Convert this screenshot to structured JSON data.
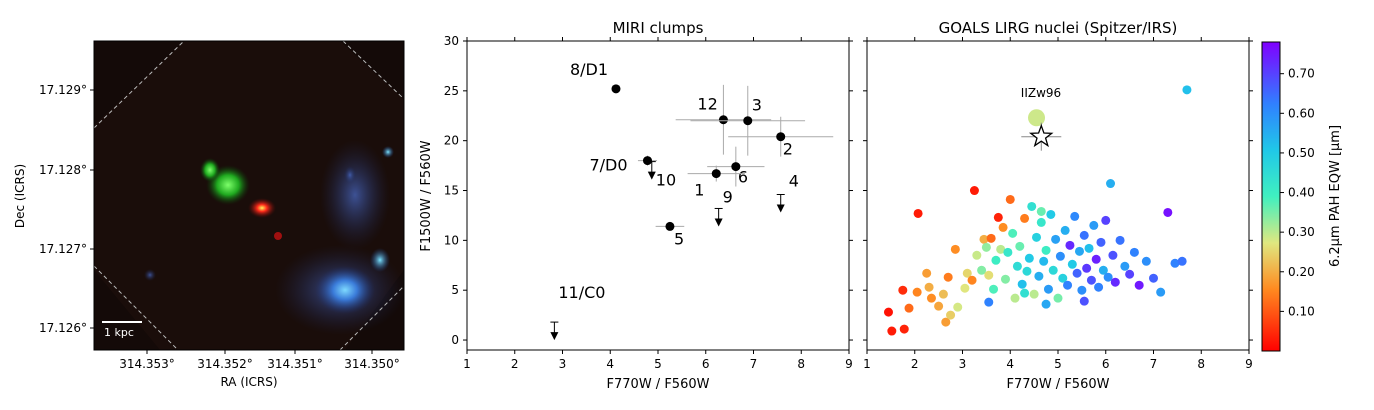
{
  "image_panel": {
    "ylabel": "Dec (ICRS)",
    "xlabel": "RA (ICRS)",
    "yticks": [
      "17.129°",
      "17.128°",
      "17.127°",
      "17.126°"
    ],
    "xticks": [
      "314.353°",
      "314.352°",
      "314.351°",
      "314.350°"
    ],
    "scalebar_label": "1 kpc"
  },
  "chart_data": [
    {
      "type": "scatter",
      "title": "MIRI clumps",
      "xlabel": "F770W / F560W",
      "ylabel": "F1500W / F560W",
      "xlim": [
        1,
        9
      ],
      "ylim": [
        -1,
        30
      ],
      "xticks": [
        1,
        2,
        3,
        4,
        5,
        6,
        7,
        8,
        9
      ],
      "yticks": [
        0,
        5,
        10,
        15,
        20,
        25,
        30
      ],
      "points": [
        {
          "label": "8/D1",
          "x": 4.12,
          "y": 25.2,
          "xerr": 0,
          "yerr": 0,
          "upper_limit": false
        },
        {
          "label": "12",
          "x": 6.37,
          "y": 22.1,
          "xerr": 1.0,
          "yerr": 3.5,
          "upper_limit": false
        },
        {
          "label": "3",
          "x": 6.88,
          "y": 22.0,
          "xerr": 1.2,
          "yerr": 3.5,
          "upper_limit": false
        },
        {
          "label": "2",
          "x": 7.57,
          "y": 20.4,
          "xerr": 1.1,
          "yerr": 2.0,
          "upper_limit": false
        },
        {
          "label": "7/D0",
          "x": 4.78,
          "y": 18.0,
          "xerr": 0.2,
          "yerr": 0.5,
          "upper_limit": false
        },
        {
          "label": "6",
          "x": 6.63,
          "y": 17.4,
          "xerr": 0.6,
          "yerr": 2.0,
          "upper_limit": false
        },
        {
          "label": "1",
          "x": 6.22,
          "y": 16.7,
          "xerr": 0.6,
          "yerr": 0.8,
          "upper_limit": false
        },
        {
          "label": "5",
          "x": 5.25,
          "y": 11.4,
          "xerr": 0.3,
          "yerr": 0.3,
          "upper_limit": false
        },
        {
          "label": "10",
          "x": 4.87,
          "y": 17.9,
          "upper_limit": true
        },
        {
          "label": "9",
          "x": 6.27,
          "y": 13.2,
          "upper_limit": true
        },
        {
          "label": "4",
          "x": 7.57,
          "y": 14.6,
          "upper_limit": true
        },
        {
          "label": "11/C0",
          "x": 2.83,
          "y": 1.8,
          "upper_limit": true
        }
      ]
    },
    {
      "type": "scatter",
      "title": "GOALS LIRG nuclei (Spitzer/IRS)",
      "xlabel": "F770W / F560W",
      "xlim": [
        1,
        9
      ],
      "ylim": [
        -1,
        30
      ],
      "xticks": [
        1,
        2,
        3,
        4,
        5,
        6,
        7,
        8,
        9
      ],
      "yticks": [
        0,
        5,
        10,
        15,
        20,
        25,
        30
      ],
      "colorbar": {
        "label": "6.2μm PAH EQW [μm]",
        "ticks": [
          "0.10",
          "0.20",
          "0.30",
          "0.40",
          "0.50",
          "0.60",
          "0.70"
        ],
        "range": [
          0.0,
          0.78
        ]
      },
      "annotation": "IIZw96",
      "iizw96": {
        "x": 4.55,
        "y": 22.3,
        "c": 0.3
      },
      "star": {
        "x": 4.65,
        "y": 20.4
      },
      "points": [
        {
          "x": 1.45,
          "y": 2.8,
          "c": 0.02
        },
        {
          "x": 1.52,
          "y": 0.9,
          "c": 0.03
        },
        {
          "x": 1.75,
          "y": 5.0,
          "c": 0.05
        },
        {
          "x": 1.78,
          "y": 1.1,
          "c": 0.04
        },
        {
          "x": 1.88,
          "y": 3.2,
          "c": 0.12
        },
        {
          "x": 2.05,
          "y": 4.8,
          "c": 0.15
        },
        {
          "x": 2.07,
          "y": 12.7,
          "c": 0.03
        },
        {
          "x": 2.25,
          "y": 6.7,
          "c": 0.18
        },
        {
          "x": 2.3,
          "y": 5.3,
          "c": 0.2
        },
        {
          "x": 2.35,
          "y": 4.2,
          "c": 0.16
        },
        {
          "x": 2.5,
          "y": 3.4,
          "c": 0.19
        },
        {
          "x": 2.6,
          "y": 4.6,
          "c": 0.22
        },
        {
          "x": 2.65,
          "y": 1.8,
          "c": 0.18
        },
        {
          "x": 2.7,
          "y": 6.3,
          "c": 0.14
        },
        {
          "x": 2.75,
          "y": 2.5,
          "c": 0.24
        },
        {
          "x": 2.85,
          "y": 9.1,
          "c": 0.16
        },
        {
          "x": 2.9,
          "y": 3.3,
          "c": 0.28
        },
        {
          "x": 3.1,
          "y": 6.7,
          "c": 0.25
        },
        {
          "x": 3.2,
          "y": 6.0,
          "c": 0.15
        },
        {
          "x": 3.25,
          "y": 15.0,
          "c": 0.03
        },
        {
          "x": 3.3,
          "y": 8.5,
          "c": 0.29
        },
        {
          "x": 3.4,
          "y": 7.0,
          "c": 0.34
        },
        {
          "x": 3.45,
          "y": 10.1,
          "c": 0.2
        },
        {
          "x": 3.5,
          "y": 9.3,
          "c": 0.33
        },
        {
          "x": 3.55,
          "y": 6.5,
          "c": 0.26
        },
        {
          "x": 3.6,
          "y": 10.2,
          "c": 0.12
        },
        {
          "x": 3.65,
          "y": 5.1,
          "c": 0.38
        },
        {
          "x": 3.7,
          "y": 8.0,
          "c": 0.4
        },
        {
          "x": 3.75,
          "y": 12.3,
          "c": 0.04
        },
        {
          "x": 3.8,
          "y": 9.1,
          "c": 0.3
        },
        {
          "x": 3.85,
          "y": 11.3,
          "c": 0.16
        },
        {
          "x": 3.9,
          "y": 6.1,
          "c": 0.34
        },
        {
          "x": 3.95,
          "y": 8.8,
          "c": 0.42
        },
        {
          "x": 4.0,
          "y": 14.1,
          "c": 0.12
        },
        {
          "x": 4.05,
          "y": 10.7,
          "c": 0.38
        },
        {
          "x": 4.1,
          "y": 4.2,
          "c": 0.3
        },
        {
          "x": 4.15,
          "y": 7.4,
          "c": 0.45
        },
        {
          "x": 4.2,
          "y": 9.4,
          "c": 0.36
        },
        {
          "x": 4.25,
          "y": 5.6,
          "c": 0.52
        },
        {
          "x": 4.3,
          "y": 12.2,
          "c": 0.14
        },
        {
          "x": 4.35,
          "y": 6.9,
          "c": 0.46
        },
        {
          "x": 4.4,
          "y": 8.2,
          "c": 0.5
        },
        {
          "x": 4.45,
          "y": 13.4,
          "c": 0.44
        },
        {
          "x": 4.5,
          "y": 4.6,
          "c": 0.3
        },
        {
          "x": 4.55,
          "y": 10.3,
          "c": 0.48
        },
        {
          "x": 4.6,
          "y": 6.4,
          "c": 0.55
        },
        {
          "x": 4.65,
          "y": 11.8,
          "c": 0.42
        },
        {
          "x": 4.7,
          "y": 7.9,
          "c": 0.53
        },
        {
          "x": 4.75,
          "y": 9.0,
          "c": 0.4
        },
        {
          "x": 4.8,
          "y": 5.1,
          "c": 0.58
        },
        {
          "x": 4.85,
          "y": 12.6,
          "c": 0.5
        },
        {
          "x": 4.9,
          "y": 7.0,
          "c": 0.46
        },
        {
          "x": 4.95,
          "y": 10.1,
          "c": 0.57
        },
        {
          "x": 5.0,
          "y": 4.2,
          "c": 0.35
        },
        {
          "x": 5.05,
          "y": 8.4,
          "c": 0.6
        },
        {
          "x": 5.1,
          "y": 6.2,
          "c": 0.48
        },
        {
          "x": 5.15,
          "y": 11.0,
          "c": 0.55
        },
        {
          "x": 5.2,
          "y": 5.5,
          "c": 0.62
        },
        {
          "x": 5.25,
          "y": 9.5,
          "c": 0.73
        },
        {
          "x": 5.3,
          "y": 7.6,
          "c": 0.5
        },
        {
          "x": 5.35,
          "y": 12.4,
          "c": 0.61
        },
        {
          "x": 5.4,
          "y": 6.7,
          "c": 0.66
        },
        {
          "x": 5.45,
          "y": 8.9,
          "c": 0.56
        },
        {
          "x": 5.5,
          "y": 5.0,
          "c": 0.6
        },
        {
          "x": 5.55,
          "y": 10.5,
          "c": 0.64
        },
        {
          "x": 5.6,
          "y": 7.2,
          "c": 0.71
        },
        {
          "x": 5.65,
          "y": 9.2,
          "c": 0.52
        },
        {
          "x": 5.7,
          "y": 6.0,
          "c": 0.68
        },
        {
          "x": 5.75,
          "y": 11.5,
          "c": 0.58
        },
        {
          "x": 5.8,
          "y": 8.1,
          "c": 0.74
        },
        {
          "x": 5.85,
          "y": 5.3,
          "c": 0.62
        },
        {
          "x": 5.9,
          "y": 9.8,
          "c": 0.66
        },
        {
          "x": 5.95,
          "y": 7.0,
          "c": 0.55
        },
        {
          "x": 6.0,
          "y": 12.0,
          "c": 0.7
        },
        {
          "x": 6.05,
          "y": 6.3,
          "c": 0.6
        },
        {
          "x": 6.1,
          "y": 15.7,
          "c": 0.55
        },
        {
          "x": 6.15,
          "y": 8.5,
          "c": 0.68
        },
        {
          "x": 6.2,
          "y": 5.8,
          "c": 0.73
        },
        {
          "x": 6.3,
          "y": 10.0,
          "c": 0.64
        },
        {
          "x": 6.4,
          "y": 7.4,
          "c": 0.58
        },
        {
          "x": 6.5,
          "y": 6.6,
          "c": 0.7
        },
        {
          "x": 6.6,
          "y": 8.8,
          "c": 0.62
        },
        {
          "x": 6.7,
          "y": 5.5,
          "c": 0.75
        },
        {
          "x": 6.85,
          "y": 7.9,
          "c": 0.6
        },
        {
          "x": 7.0,
          "y": 6.2,
          "c": 0.66
        },
        {
          "x": 7.15,
          "y": 4.8,
          "c": 0.58
        },
        {
          "x": 7.3,
          "y": 12.8,
          "c": 0.76
        },
        {
          "x": 7.45,
          "y": 7.7,
          "c": 0.62
        },
        {
          "x": 7.6,
          "y": 7.9,
          "c": 0.64
        },
        {
          "x": 7.7,
          "y": 25.1,
          "c": 0.52
        },
        {
          "x": 4.3,
          "y": 4.7,
          "c": 0.44
        },
        {
          "x": 4.75,
          "y": 3.6,
          "c": 0.56
        },
        {
          "x": 5.55,
          "y": 3.9,
          "c": 0.68
        },
        {
          "x": 3.55,
          "y": 3.8,
          "c": 0.62
        },
        {
          "x": 3.05,
          "y": 5.2,
          "c": 0.27
        },
        {
          "x": 4.65,
          "y": 12.9,
          "c": 0.36
        }
      ]
    }
  ]
}
